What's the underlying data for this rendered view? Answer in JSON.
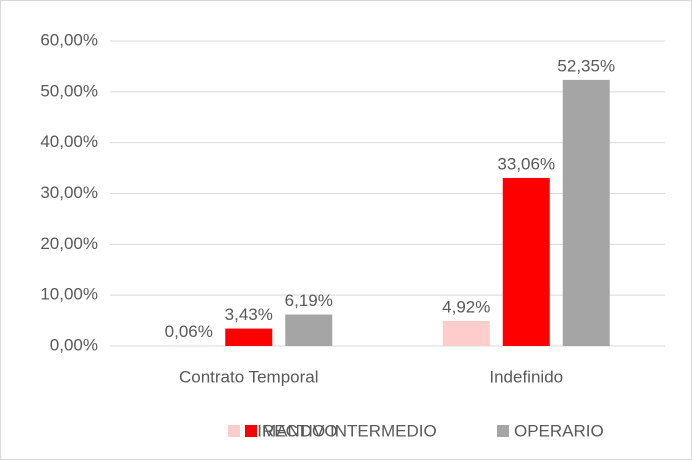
{
  "chart_data": {
    "type": "bar",
    "categories": [
      "Contrato Temporal",
      "Indefinido"
    ],
    "series": [
      {
        "name": "DIRECTIVO",
        "color": "#ffcccc",
        "values": [
          0.06,
          4.92
        ],
        "value_labels": [
          "0,06%",
          "4,92%"
        ]
      },
      {
        "name": "MANDO INTERMEDIO",
        "color": "#ff0000",
        "values": [
          3.43,
          33.06
        ],
        "value_labels": [
          "3,43%",
          "33,06%"
        ]
      },
      {
        "name": "OPERARIO",
        "color": "#a5a5a5",
        "values": [
          6.19,
          52.35
        ],
        "value_labels": [
          "6,19%",
          "52,35%"
        ]
      }
    ],
    "ylim": [
      0,
      60
    ],
    "yticks": [
      {
        "value": 0,
        "label": "0,00%"
      },
      {
        "value": 10,
        "label": "10,00%"
      },
      {
        "value": 20,
        "label": "20,00%"
      },
      {
        "value": 30,
        "label": "30,00%"
      },
      {
        "value": 40,
        "label": "40,00%"
      },
      {
        "value": 50,
        "label": "50,00%"
      },
      {
        "value": 60,
        "label": "60,00%"
      }
    ],
    "grid": true,
    "legend": "bottom"
  }
}
